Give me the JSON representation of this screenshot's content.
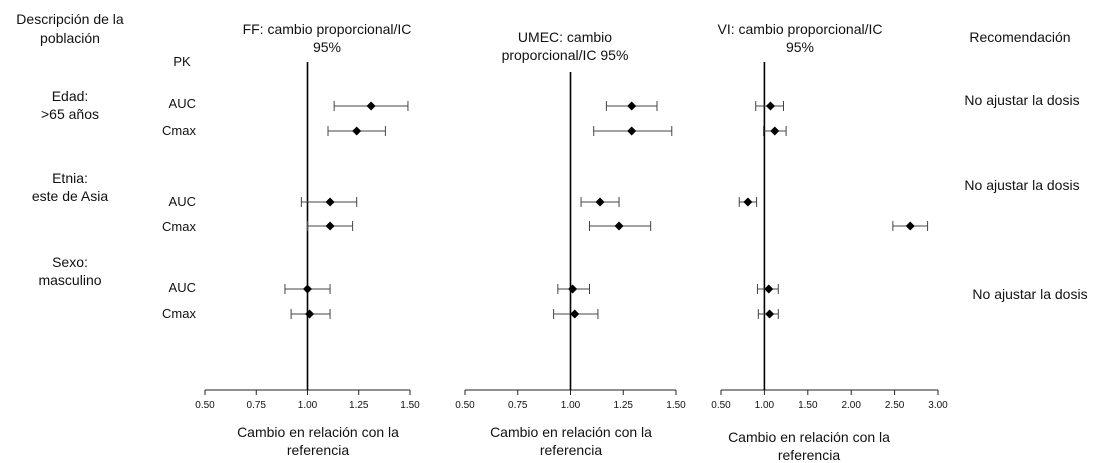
{
  "header": {
    "population": [
      "Descripción de la",
      "población"
    ],
    "pk": "PK",
    "recommendation": "Recomendación"
  },
  "groups": [
    {
      "label": [
        "Edad:",
        ">65 años"
      ],
      "recommendation": "No ajustar la dosis"
    },
    {
      "label": [
        "Etnia:",
        "este de Asia"
      ],
      "recommendation": "No ajustar la dosis"
    },
    {
      "label": [
        "Sexo:",
        "masculino"
      ],
      "recommendation": "No ajustar la dosis"
    }
  ],
  "chart_data": [
    {
      "type": "forest",
      "title": [
        "FF: cambio proporcional/IC",
        "95%"
      ],
      "xlabel": [
        "Cambio en relación con la",
        "referencia"
      ],
      "xlim": [
        0.5,
        1.5
      ],
      "xticks": [
        "0.50",
        "0.75",
        "1.00",
        "1.25",
        "1.50"
      ],
      "reference": 1.0,
      "rows": [
        {
          "group": 0,
          "label": "AUC",
          "est": 1.31,
          "low": 1.13,
          "high": 1.49
        },
        {
          "group": 0,
          "label": "Cmax",
          "est": 1.24,
          "low": 1.1,
          "high": 1.38
        },
        {
          "group": 1,
          "label": "AUC",
          "est": 1.11,
          "low": 0.97,
          "high": 1.24
        },
        {
          "group": 1,
          "label": "Cmax",
          "est": 1.11,
          "low": 1.0,
          "high": 1.22
        },
        {
          "group": 2,
          "label": "AUC",
          "est": 1.0,
          "low": 0.89,
          "high": 1.11
        },
        {
          "group": 2,
          "label": "Cmax",
          "est": 1.01,
          "low": 0.92,
          "high": 1.11
        }
      ]
    },
    {
      "type": "forest",
      "title": [
        "UMEC: cambio",
        "proporcional/IC 95%"
      ],
      "xlabel": [
        "Cambio en relación con la",
        "referencia"
      ],
      "xlim": [
        0.5,
        1.5
      ],
      "xticks": [
        "0.50",
        "0.75",
        "1.00",
        "1.25",
        "1.50"
      ],
      "reference": 1.0,
      "rows": [
        {
          "group": 0,
          "label": "AUC",
          "est": 1.29,
          "low": 1.17,
          "high": 1.41
        },
        {
          "group": 0,
          "label": "Cmax",
          "est": 1.29,
          "low": 1.11,
          "high": 1.48
        },
        {
          "group": 1,
          "label": "AUC",
          "est": 1.14,
          "low": 1.05,
          "high": 1.23
        },
        {
          "group": 1,
          "label": "Cmax",
          "est": 1.23,
          "low": 1.09,
          "high": 1.38
        },
        {
          "group": 2,
          "label": "AUC",
          "est": 1.01,
          "low": 0.94,
          "high": 1.09
        },
        {
          "group": 2,
          "label": "Cmax",
          "est": 1.02,
          "low": 0.92,
          "high": 1.13
        }
      ]
    },
    {
      "type": "forest",
      "title": [
        "VI: cambio proporcional/IC",
        "95%"
      ],
      "xlabel": [
        "Cambio en relación con la",
        "referencia"
      ],
      "xlim": [
        0.5,
        3.0
      ],
      "xticks": [
        "0.50",
        "1.00",
        "1.50",
        "2.00",
        "2.50",
        "3.00"
      ],
      "reference": 1.0,
      "rows": [
        {
          "group": 0,
          "label": "AUC",
          "est": 1.07,
          "low": 0.9,
          "high": 1.22
        },
        {
          "group": 0,
          "label": "Cmax",
          "est": 1.12,
          "low": 0.99,
          "high": 1.25
        },
        {
          "group": 1,
          "label": "AUC",
          "est": 0.81,
          "low": 0.71,
          "high": 0.91
        },
        {
          "group": 1,
          "label": "Cmax",
          "est": 2.68,
          "low": 2.48,
          "high": 2.88
        },
        {
          "group": 2,
          "label": "AUC",
          "est": 1.05,
          "low": 0.92,
          "high": 1.16
        },
        {
          "group": 2,
          "label": "Cmax",
          "est": 1.06,
          "low": 0.93,
          "high": 1.16
        }
      ]
    }
  ]
}
